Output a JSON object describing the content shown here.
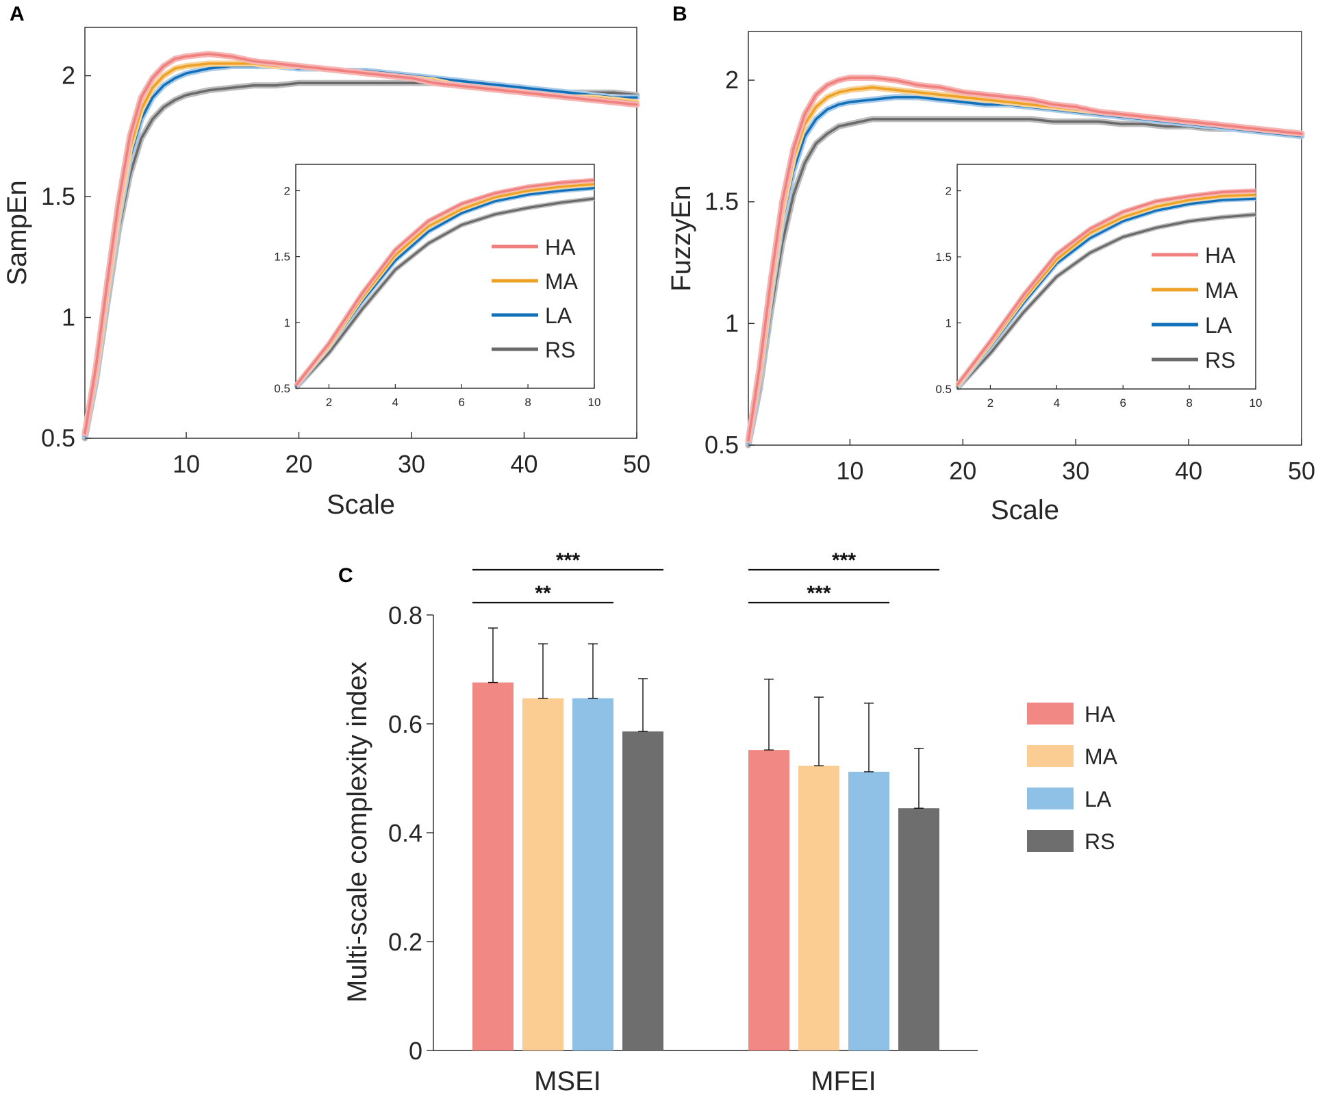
{
  "colors": {
    "HA_line": "#f0807e",
    "MA_line": "#eea225",
    "LA_line": "#1170b8",
    "RS_line": "#6a6a6a",
    "HA_bar": "#f28883",
    "MA_bar": "#fbcd92",
    "LA_bar": "#8fc0e6",
    "RS_bar": "#6e6e6e"
  },
  "chart_data": [
    {
      "id": "A",
      "type": "line",
      "panel_label": "A",
      "xlabel": "Scale",
      "ylabel": "SampEn",
      "xlim": [
        1,
        50
      ],
      "ylim": [
        0.5,
        2.2
      ],
      "xticks": [
        10,
        20,
        30,
        40,
        50
      ],
      "yticks": [
        0.5,
        1,
        1.5,
        2
      ],
      "xtick_labels": [
        "10",
        "20",
        "30",
        "40",
        "50"
      ],
      "ytick_labels": [
        "0.5",
        "1",
        "1.5",
        "2"
      ],
      "legend": [
        "HA",
        "MA",
        "LA",
        "RS"
      ],
      "series": [
        {
          "name": "HA",
          "x": [
            1,
            2,
            3,
            4,
            5,
            6,
            7,
            8,
            9,
            10,
            12,
            14,
            16,
            18,
            20,
            22,
            24,
            26,
            28,
            30,
            32,
            34,
            36,
            38,
            40,
            42,
            44,
            46,
            48,
            50
          ],
          "values": [
            0.52,
            0.8,
            1.15,
            1.48,
            1.75,
            1.91,
            1.99,
            2.04,
            2.07,
            2.08,
            2.09,
            2.08,
            2.06,
            2.05,
            2.04,
            2.03,
            2.02,
            2.01,
            2.0,
            1.99,
            1.97,
            1.96,
            1.95,
            1.94,
            1.93,
            1.92,
            1.91,
            1.9,
            1.89,
            1.88
          ]
        },
        {
          "name": "MA",
          "x": [
            1,
            2,
            3,
            4,
            5,
            6,
            7,
            8,
            9,
            10,
            12,
            14,
            16,
            18,
            20,
            22,
            24,
            26,
            28,
            30,
            32,
            34,
            36,
            38,
            40,
            42,
            44,
            46,
            48,
            50
          ],
          "values": [
            0.52,
            0.78,
            1.12,
            1.44,
            1.7,
            1.86,
            1.95,
            2.0,
            2.03,
            2.04,
            2.05,
            2.05,
            2.05,
            2.04,
            2.04,
            2.03,
            2.02,
            2.01,
            2.0,
            1.99,
            1.98,
            1.96,
            1.95,
            1.94,
            1.93,
            1.92,
            1.91,
            1.91,
            1.9,
            1.89
          ]
        },
        {
          "name": "LA",
          "x": [
            1,
            2,
            3,
            4,
            5,
            6,
            7,
            8,
            9,
            10,
            12,
            14,
            16,
            18,
            20,
            22,
            24,
            26,
            28,
            30,
            32,
            34,
            36,
            38,
            40,
            42,
            44,
            46,
            48,
            50
          ],
          "values": [
            0.51,
            0.76,
            1.1,
            1.41,
            1.66,
            1.82,
            1.91,
            1.96,
            1.99,
            2.01,
            2.03,
            2.04,
            2.04,
            2.04,
            2.03,
            2.03,
            2.02,
            2.02,
            2.01,
            2.0,
            1.99,
            1.98,
            1.97,
            1.96,
            1.95,
            1.94,
            1.93,
            1.92,
            1.91,
            1.91
          ]
        },
        {
          "name": "RS",
          "x": [
            1,
            2,
            3,
            4,
            5,
            6,
            7,
            8,
            9,
            10,
            12,
            14,
            16,
            18,
            20,
            22,
            24,
            26,
            28,
            30,
            32,
            34,
            36,
            38,
            40,
            42,
            44,
            46,
            48,
            50
          ],
          "values": [
            0.5,
            0.74,
            1.06,
            1.36,
            1.59,
            1.74,
            1.82,
            1.87,
            1.9,
            1.92,
            1.94,
            1.95,
            1.96,
            1.96,
            1.97,
            1.97,
            1.97,
            1.97,
            1.97,
            1.97,
            1.97,
            1.96,
            1.95,
            1.95,
            1.94,
            1.94,
            1.93,
            1.93,
            1.93,
            1.92
          ]
        }
      ],
      "inset": {
        "xlim": [
          1,
          10
        ],
        "ylim": [
          0.5,
          2.2
        ],
        "xticks": [
          2,
          4,
          6,
          8,
          10
        ],
        "yticks": [
          0.5,
          1,
          1.5,
          2
        ],
        "xtick_labels": [
          "2",
          "4",
          "6",
          "8",
          "10"
        ],
        "ytick_labels": [
          "0.5",
          "1",
          "1.5",
          "2"
        ],
        "series": [
          {
            "name": "HA",
            "x": [
              1,
              2,
              3,
              4,
              5,
              6,
              7,
              8,
              9,
              10
            ],
            "values": [
              0.52,
              0.84,
              1.22,
              1.55,
              1.77,
              1.9,
              1.98,
              2.03,
              2.06,
              2.08
            ]
          },
          {
            "name": "MA",
            "x": [
              1,
              2,
              3,
              4,
              5,
              6,
              7,
              8,
              9,
              10
            ],
            "values": [
              0.52,
              0.82,
              1.19,
              1.51,
              1.73,
              1.86,
              1.95,
              2.0,
              2.03,
              2.05
            ]
          },
          {
            "name": "LA",
            "x": [
              1,
              2,
              3,
              4,
              5,
              6,
              7,
              8,
              9,
              10
            ],
            "values": [
              0.51,
              0.81,
              1.16,
              1.47,
              1.69,
              1.83,
              1.92,
              1.97,
              2.0,
              2.02
            ]
          },
          {
            "name": "RS",
            "x": [
              1,
              2,
              3,
              4,
              5,
              6,
              7,
              8,
              9,
              10
            ],
            "values": [
              0.5,
              0.77,
              1.1,
              1.4,
              1.6,
              1.74,
              1.82,
              1.87,
              1.91,
              1.94
            ]
          }
        ]
      }
    },
    {
      "id": "B",
      "type": "line",
      "panel_label": "B",
      "xlabel": "Scale",
      "ylabel": "FuzzyEn",
      "xlim": [
        1,
        50
      ],
      "ylim": [
        0.5,
        2.2
      ],
      "xticks": [
        10,
        20,
        30,
        40,
        50
      ],
      "yticks": [
        0.5,
        1,
        1.5,
        2
      ],
      "xtick_labels": [
        "10",
        "20",
        "30",
        "40",
        "50"
      ],
      "ytick_labels": [
        "0.5",
        "1",
        "1.5",
        "2"
      ],
      "legend": [
        "HA",
        "MA",
        "LA",
        "RS"
      ],
      "series": [
        {
          "name": "HA",
          "x": [
            1,
            2,
            3,
            4,
            5,
            6,
            7,
            8,
            9,
            10,
            12,
            14,
            16,
            18,
            20,
            22,
            24,
            26,
            28,
            30,
            32,
            34,
            36,
            38,
            40,
            42,
            44,
            46,
            48,
            50
          ],
          "values": [
            0.52,
            0.82,
            1.18,
            1.5,
            1.72,
            1.86,
            1.94,
            1.98,
            2.0,
            2.01,
            2.01,
            2.0,
            1.98,
            1.97,
            1.95,
            1.94,
            1.93,
            1.92,
            1.9,
            1.89,
            1.87,
            1.86,
            1.85,
            1.84,
            1.83,
            1.82,
            1.81,
            1.8,
            1.79,
            1.78
          ]
        },
        {
          "name": "MA",
          "x": [
            1,
            2,
            3,
            4,
            5,
            6,
            7,
            8,
            9,
            10,
            12,
            14,
            16,
            18,
            20,
            22,
            24,
            26,
            28,
            30,
            32,
            34,
            36,
            38,
            40,
            42,
            44,
            46,
            48,
            50
          ],
          "values": [
            0.52,
            0.8,
            1.15,
            1.46,
            1.68,
            1.82,
            1.89,
            1.93,
            1.95,
            1.96,
            1.97,
            1.96,
            1.95,
            1.94,
            1.93,
            1.92,
            1.91,
            1.9,
            1.89,
            1.88,
            1.87,
            1.86,
            1.85,
            1.84,
            1.83,
            1.82,
            1.81,
            1.8,
            1.79,
            1.78
          ]
        },
        {
          "name": "LA",
          "x": [
            1,
            2,
            3,
            4,
            5,
            6,
            7,
            8,
            9,
            10,
            12,
            14,
            16,
            18,
            20,
            22,
            24,
            26,
            28,
            30,
            32,
            34,
            36,
            38,
            40,
            42,
            44,
            46,
            48,
            50
          ],
          "values": [
            0.51,
            0.78,
            1.12,
            1.42,
            1.63,
            1.77,
            1.84,
            1.88,
            1.9,
            1.91,
            1.92,
            1.93,
            1.93,
            1.92,
            1.91,
            1.9,
            1.9,
            1.89,
            1.88,
            1.87,
            1.86,
            1.85,
            1.84,
            1.83,
            1.82,
            1.81,
            1.8,
            1.79,
            1.78,
            1.77
          ]
        },
        {
          "name": "RS",
          "x": [
            1,
            2,
            3,
            4,
            5,
            6,
            7,
            8,
            9,
            10,
            12,
            14,
            16,
            18,
            20,
            22,
            24,
            26,
            28,
            30,
            32,
            34,
            36,
            38,
            40,
            42,
            44,
            46,
            48,
            50
          ],
          "values": [
            0.5,
            0.73,
            1.05,
            1.33,
            1.53,
            1.66,
            1.74,
            1.78,
            1.81,
            1.82,
            1.84,
            1.84,
            1.84,
            1.84,
            1.84,
            1.84,
            1.84,
            1.84,
            1.83,
            1.83,
            1.83,
            1.82,
            1.82,
            1.81,
            1.81,
            1.8,
            1.8,
            1.79,
            1.79,
            1.78
          ]
        }
      ],
      "inset": {
        "xlim": [
          1,
          10
        ],
        "ylim": [
          0.5,
          2.2
        ],
        "xticks": [
          2,
          4,
          6,
          8,
          10
        ],
        "yticks": [
          0.5,
          1,
          1.5,
          2
        ],
        "xtick_labels": [
          "2",
          "4",
          "6",
          "8",
          "10"
        ],
        "ytick_labels": [
          "0.5",
          "1",
          "1.5",
          "2"
        ],
        "series": [
          {
            "name": "HA",
            "x": [
              1,
              2,
              3,
              4,
              5,
              6,
              7,
              8,
              9,
              10
            ],
            "values": [
              0.53,
              0.86,
              1.21,
              1.52,
              1.71,
              1.84,
              1.92,
              1.96,
              1.99,
              2.0
            ]
          },
          {
            "name": "MA",
            "x": [
              1,
              2,
              3,
              4,
              5,
              6,
              7,
              8,
              9,
              10
            ],
            "values": [
              0.52,
              0.84,
              1.18,
              1.48,
              1.68,
              1.8,
              1.88,
              1.93,
              1.96,
              1.97
            ]
          },
          {
            "name": "LA",
            "x": [
              1,
              2,
              3,
              4,
              5,
              6,
              7,
              8,
              9,
              10
            ],
            "values": [
              0.51,
              0.82,
              1.15,
              1.45,
              1.64,
              1.77,
              1.85,
              1.9,
              1.93,
              1.94
            ]
          },
          {
            "name": "RS",
            "x": [
              1,
              2,
              3,
              4,
              5,
              6,
              7,
              8,
              9,
              10
            ],
            "values": [
              0.5,
              0.77,
              1.08,
              1.35,
              1.53,
              1.65,
              1.72,
              1.77,
              1.8,
              1.82
            ]
          }
        ]
      }
    },
    {
      "id": "C",
      "type": "bar",
      "panel_label": "C",
      "ylabel": "Multi-scale complexity index",
      "ylim": [
        0,
        0.8
      ],
      "yticks": [
        0,
        0.2,
        0.4,
        0.6,
        0.8
      ],
      "ytick_labels": [
        "0",
        "0.2",
        "0.4",
        "0.6",
        "0.8"
      ],
      "categories": [
        "MSEI",
        "MFEI"
      ],
      "series": [
        {
          "name": "HA",
          "values": [
            0.676,
            0.552
          ],
          "errors": [
            0.1,
            0.13
          ]
        },
        {
          "name": "MA",
          "values": [
            0.647,
            0.523
          ],
          "errors": [
            0.1,
            0.126
          ]
        },
        {
          "name": "LA",
          "values": [
            0.647,
            0.512
          ],
          "errors": [
            0.1,
            0.126
          ]
        },
        {
          "name": "RS",
          "values": [
            0.586,
            0.445
          ],
          "errors": [
            0.097,
            0.11
          ]
        }
      ],
      "legend": [
        "HA",
        "MA",
        "LA",
        "RS"
      ],
      "significance": [
        {
          "category": "MSEI",
          "from": "HA",
          "to": "LA",
          "label": "**"
        },
        {
          "category": "MSEI",
          "from": "HA",
          "to": "RS",
          "label": "***"
        },
        {
          "category": "MFEI",
          "from": "HA",
          "to": "LA",
          "label": "***"
        },
        {
          "category": "MFEI",
          "from": "HA",
          "to": "RS",
          "label": "***"
        }
      ]
    }
  ]
}
